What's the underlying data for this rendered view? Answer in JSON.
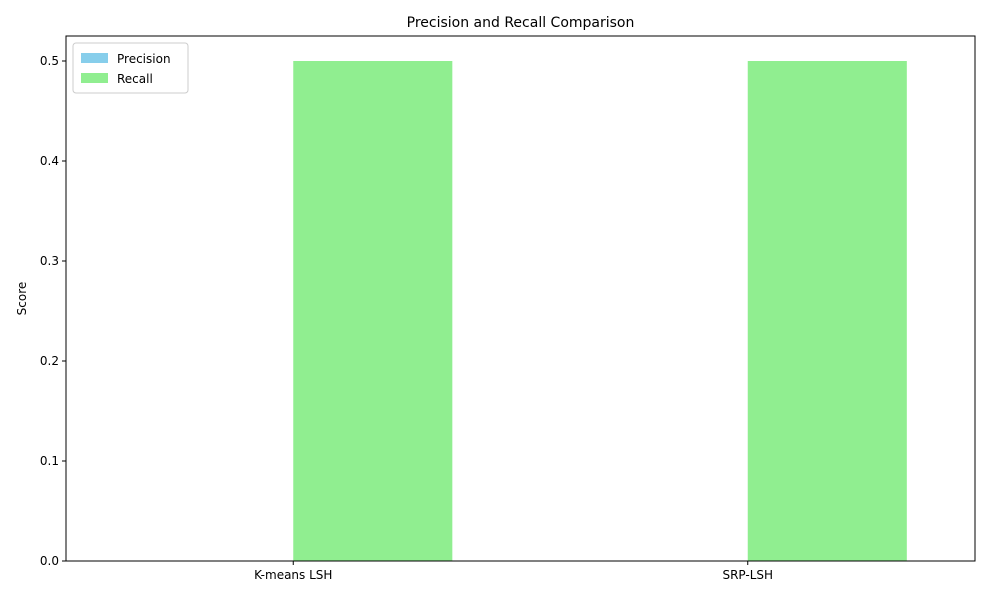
{
  "chart_data": {
    "type": "bar",
    "title": "Precision and Recall Comparison",
    "xlabel": "",
    "ylabel": "Score",
    "categories": [
      "K-means LSH",
      "SRP-LSH"
    ],
    "series": [
      {
        "name": "Precision",
        "values": [
          0.0,
          0.0
        ],
        "color": "#87ceeb"
      },
      {
        "name": "Recall",
        "values": [
          0.5,
          0.5
        ],
        "color": "#90ee90"
      }
    ],
    "ylim": [
      0,
      0.525
    ],
    "yticks": [
      0.0,
      0.1,
      0.2,
      0.3,
      0.4,
      0.5
    ],
    "ytick_labels": [
      "0.0",
      "0.1",
      "0.2",
      "0.3",
      "0.4",
      "0.5"
    ],
    "legend_position": "top-left",
    "grid": false
  }
}
